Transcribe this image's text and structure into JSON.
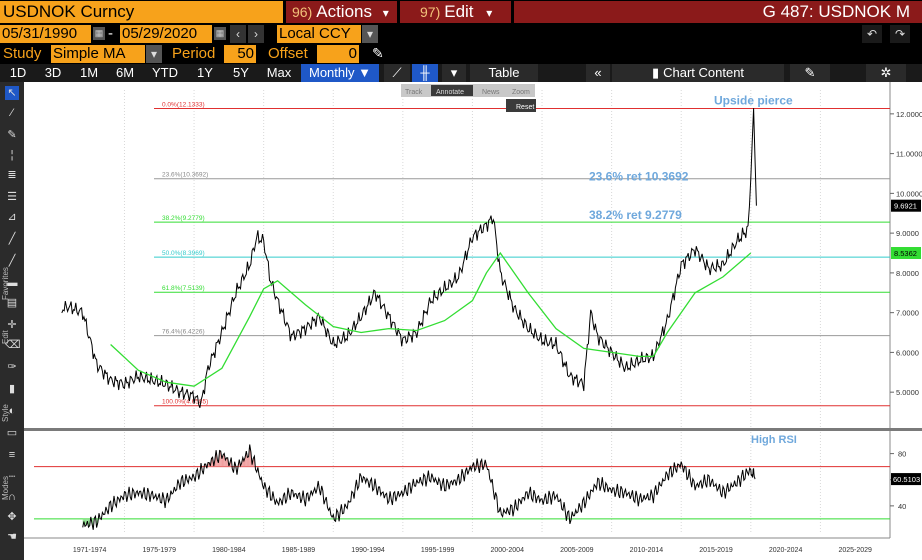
{
  "header": {
    "ticker": "USDNOK Curncy",
    "actions_num": "96)",
    "actions_label": "Actions",
    "actions_arrow": "▾",
    "edit_num": "97)",
    "edit_label": "Edit",
    "edit_arrow": "▾",
    "title": "G 487: USDNOK M"
  },
  "dates": {
    "start": "05/31/1990",
    "separator": "-",
    "end": "05/29/2020",
    "currency": "Local CCY"
  },
  "study": {
    "label": "Study",
    "value": "Simple MA",
    "period_label": "Period",
    "period_value": "50",
    "offset_label": "Offset",
    "offset_value": "0"
  },
  "toolbar": {
    "timeframes": [
      "1D",
      "3D",
      "1M",
      "6M",
      "YTD",
      "1Y",
      "5Y",
      "Max"
    ],
    "selected": "Monthly ▼",
    "table_label": "Table",
    "chart_content_label": "Chart Content"
  },
  "mini_toolbar": {
    "track": "Track",
    "annotate": "Annotate",
    "news": "News",
    "zoom": "Zoom",
    "reset": "Reset"
  },
  "side_labels": {
    "favorites": "Favorites",
    "edit": "Edit",
    "style": "Style",
    "modes": "Modes"
  },
  "colors": {
    "price_line": "#000000",
    "ma_line": "#33dd33",
    "fib_red": "#e03030",
    "fib_green": "#33dd33",
    "fib_cyan": "#33cccc",
    "fib_gray": "#999999",
    "annotation": "#6fa8dc",
    "rsi_upper": "#e03030",
    "rsi_lower": "#33dd33"
  },
  "chart_data": [
    {
      "type": "line",
      "ylim": [
        4.3,
        12.6
      ],
      "y_ticks": [
        5.0,
        6.0,
        7.0,
        8.0,
        9.0,
        10.0,
        11.0,
        12.0
      ],
      "y_tick_labels": [
        "5.0000",
        "6.0000",
        "7.0000",
        "8.0000",
        "9.0000",
        "10.0000",
        "11.0000",
        "12.0000"
      ],
      "last_price_label": "9.6921",
      "ma_last_label": "8.5362",
      "fib_levels": [
        {
          "label": "0.0%(12.1333)",
          "value": 12.1333,
          "color": "red"
        },
        {
          "label": "23.6%(10.3692)",
          "value": 10.3692,
          "color": "gray"
        },
        {
          "label": "38.2%(9.2779)",
          "value": 9.2779,
          "color": "green"
        },
        {
          "label": "50.0%(8.3969)",
          "value": 8.3969,
          "color": "cyan"
        },
        {
          "label": "61.8%(7.5139)",
          "value": 7.5139,
          "color": "green"
        },
        {
          "label": "76.4%(6.4226)",
          "value": 6.4226,
          "color": "gray"
        },
        {
          "label": "100.0%(4.6585)",
          "value": 4.6585,
          "color": "red"
        }
      ],
      "annotations": [
        {
          "text": "Upside pierce"
        },
        {
          "text": "23.6% ret 10.3692"
        },
        {
          "text": "38.2% ret 9.2779"
        }
      ],
      "price_series": {
        "name": "USDNOK",
        "x": [
          1970.5,
          1971.0,
          1972.0,
          1973.0,
          1974.0,
          1975.0,
          1976.0,
          1977.0,
          1978.0,
          1979.0,
          1980.0,
          1980.5,
          1981.0,
          1982.0,
          1983.0,
          1984.0,
          1984.5,
          1985.0,
          1985.5,
          1986.0,
          1987.0,
          1988.0,
          1989.0,
          1990.0,
          1991.0,
          1992.0,
          1993.0,
          1994.0,
          1995.0,
          1996.0,
          1997.0,
          1998.0,
          1999.0,
          2000.0,
          2001.0,
          2001.5,
          2002.0,
          2003.0,
          2004.0,
          2005.0,
          2006.0,
          2007.0,
          2008.0,
          2008.5,
          2009.0,
          2010.0,
          2011.0,
          2012.0,
          2013.0,
          2014.0,
          2015.0,
          2016.0,
          2017.0,
          2018.0,
          2019.0,
          2019.8,
          2020.0,
          2020.2,
          2020.4
        ],
        "y": [
          7.1,
          7.15,
          7.0,
          5.7,
          5.3,
          5.2,
          5.4,
          5.3,
          5.2,
          5.0,
          4.9,
          4.7,
          5.6,
          6.5,
          7.5,
          8.2,
          8.9,
          8.8,
          7.8,
          7.3,
          6.4,
          6.6,
          6.9,
          6.2,
          6.4,
          6.9,
          7.5,
          6.9,
          6.3,
          6.5,
          7.3,
          7.6,
          7.9,
          8.9,
          9.2,
          9.4,
          8.0,
          7.1,
          6.6,
          6.3,
          6.2,
          5.4,
          5.2,
          7.0,
          6.4,
          6.0,
          5.6,
          5.8,
          5.9,
          6.8,
          8.2,
          8.6,
          8.1,
          8.2,
          8.8,
          9.1,
          10.4,
          12.1,
          9.69
        ]
      },
      "ma_series": {
        "name": "Simple MA 50",
        "x": [
          1974.0,
          1976.0,
          1978.0,
          1980.0,
          1982.0,
          1984.0,
          1985.0,
          1986.0,
          1988.0,
          1990.0,
          1992.0,
          1994.0,
          1996.0,
          1998.0,
          2000.0,
          2001.0,
          2002.0,
          2004.0,
          2006.0,
          2008.0,
          2010.0,
          2012.0,
          2013.0,
          2014.0,
          2016.0,
          2018.0,
          2020.0
        ],
        "y": [
          6.2,
          5.55,
          5.25,
          5.15,
          5.6,
          6.9,
          7.6,
          7.8,
          7.2,
          6.65,
          6.5,
          6.6,
          6.55,
          6.8,
          7.3,
          8.0,
          8.5,
          7.5,
          6.6,
          6.1,
          6.0,
          5.9,
          5.9,
          6.5,
          7.5,
          7.9,
          8.5
        ]
      }
    },
    {
      "type": "line",
      "name": "RSI",
      "ylim": [
        20,
        95
      ],
      "y_ticks": [
        40,
        60,
        80
      ],
      "upper_band": 70,
      "lower_band": 30,
      "last_value_label": "60.5103",
      "annotations": [
        {
          "text": "High RSI"
        }
      ],
      "rsi_series": {
        "x": [
          1972.0,
          1973.0,
          1974.0,
          1975.0,
          1976.0,
          1977.0,
          1978.0,
          1979.0,
          1980.0,
          1981.0,
          1982.0,
          1983.0,
          1984.0,
          1985.0,
          1986.0,
          1987.0,
          1988.0,
          1989.0,
          1990.0,
          1991.0,
          1992.0,
          1993.0,
          1994.0,
          1995.0,
          1996.0,
          1997.0,
          1998.0,
          1999.0,
          2000.0,
          2001.0,
          2002.0,
          2003.0,
          2004.0,
          2005.0,
          2006.0,
          2007.0,
          2008.0,
          2009.0,
          2010.0,
          2011.0,
          2012.0,
          2013.0,
          2014.0,
          2015.0,
          2016.0,
          2017.0,
          2018.0,
          2019.0,
          2020.0,
          2020.3
        ],
        "y": [
          25,
          28,
          40,
          48,
          50,
          48,
          44,
          58,
          62,
          72,
          80,
          68,
          82,
          55,
          42,
          50,
          45,
          55,
          30,
          40,
          62,
          55,
          45,
          50,
          58,
          62,
          55,
          60,
          70,
          72,
          34,
          38,
          50,
          44,
          48,
          30,
          42,
          58,
          52,
          50,
          45,
          48,
          64,
          72,
          55,
          60,
          50,
          58,
          68,
          60.5
        ]
      }
    }
  ],
  "x_axis": {
    "labels": [
      "1971-1974",
      "1975-1979",
      "1980-1984",
      "1985-1989",
      "1990-1994",
      "1995-1999",
      "2000-2004",
      "2005-2009",
      "2010-2014",
      "2015-2019",
      "2020-2024",
      "2025-2029"
    ]
  }
}
